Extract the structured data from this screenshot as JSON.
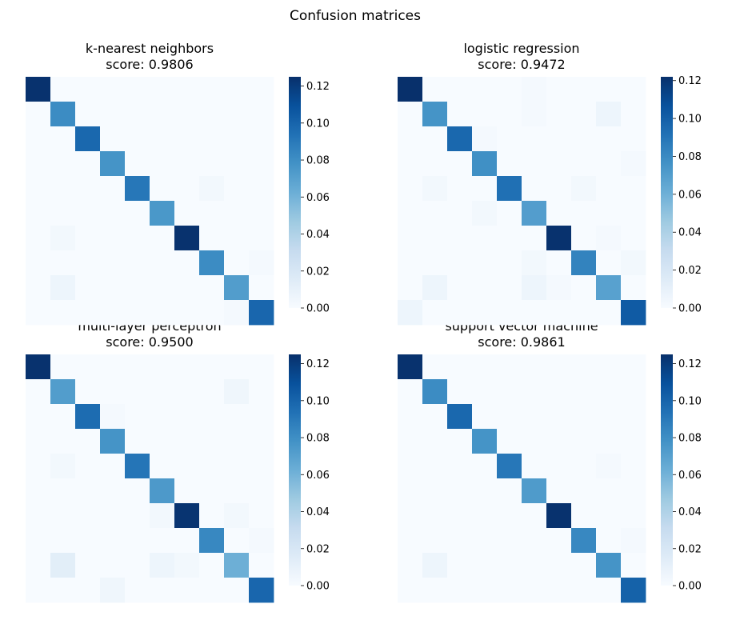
{
  "figure": {
    "title": "Confusion matrices"
  },
  "chart_data": [
    {
      "type": "heatmap",
      "title": "k-nearest neighbors",
      "subtitle": "score: 0.9806",
      "colormap": "Blues",
      "colorbar": {
        "vmin": 0.0,
        "vmax": 0.125,
        "ticks": [
          "0.00",
          "0.02",
          "0.04",
          "0.06",
          "0.08",
          "0.10",
          "0.12"
        ]
      },
      "diagonal": [
        0.124,
        0.081,
        0.098,
        0.077,
        0.091,
        0.075,
        0.124,
        0.081,
        0.072,
        0.099
      ],
      "off_diagonal": [
        [
          4,
          7,
          0.003
        ],
        [
          6,
          1,
          0.003
        ],
        [
          7,
          9,
          0.002
        ],
        [
          8,
          1,
          0.006
        ],
        [
          9,
          8,
          0.002
        ]
      ],
      "grid": false
    },
    {
      "type": "heatmap",
      "title": "logistic regression",
      "subtitle": "score: 0.9472",
      "colormap": "Blues",
      "colorbar": {
        "vmin": 0.0,
        "vmax": 0.122,
        "ticks": [
          "0.00",
          "0.02",
          "0.04",
          "0.06",
          "0.08",
          "0.10",
          "0.12"
        ]
      },
      "diagonal": [
        0.122,
        0.075,
        0.096,
        0.077,
        0.092,
        0.07,
        0.121,
        0.083,
        0.068,
        0.102
      ],
      "off_diagonal": [
        [
          0,
          5,
          0.002
        ],
        [
          1,
          5,
          0.002
        ],
        [
          1,
          8,
          0.006
        ],
        [
          2,
          3,
          0.002
        ],
        [
          3,
          9,
          0.002
        ],
        [
          4,
          1,
          0.003
        ],
        [
          4,
          7,
          0.003
        ],
        [
          5,
          3,
          0.003
        ],
        [
          6,
          8,
          0.002
        ],
        [
          7,
          5,
          0.003
        ],
        [
          7,
          9,
          0.003
        ],
        [
          8,
          1,
          0.006
        ],
        [
          8,
          5,
          0.006
        ],
        [
          8,
          6,
          0.002
        ],
        [
          9,
          0,
          0.006
        ]
      ],
      "grid": false
    },
    {
      "type": "heatmap",
      "title": "multi-layer perceptron",
      "subtitle": "score: 0.9500",
      "colormap": "Blues",
      "colorbar": {
        "vmin": 0.0,
        "vmax": 0.125,
        "ticks": [
          "0.00",
          "0.02",
          "0.04",
          "0.06",
          "0.08",
          "0.10",
          "0.12"
        ]
      },
      "diagonal": [
        0.124,
        0.072,
        0.096,
        0.077,
        0.092,
        0.074,
        0.123,
        0.083,
        0.062,
        0.099
      ],
      "off_diagonal": [
        [
          1,
          8,
          0.005
        ],
        [
          2,
          3,
          0.002
        ],
        [
          4,
          1,
          0.003
        ],
        [
          6,
          5,
          0.003
        ],
        [
          6,
          8,
          0.003
        ],
        [
          7,
          9,
          0.002
        ],
        [
          8,
          1,
          0.013
        ],
        [
          8,
          5,
          0.006
        ],
        [
          8,
          6,
          0.003
        ],
        [
          9,
          3,
          0.005
        ]
      ],
      "grid": false
    },
    {
      "type": "heatmap",
      "title": "support vector machine",
      "subtitle": "score: 0.9861",
      "colormap": "Blues",
      "colorbar": {
        "vmin": 0.0,
        "vmax": 0.125,
        "ticks": [
          "0.00",
          "0.02",
          "0.04",
          "0.06",
          "0.08",
          "0.10",
          "0.12"
        ]
      },
      "diagonal": [
        0.124,
        0.081,
        0.098,
        0.077,
        0.091,
        0.073,
        0.124,
        0.083,
        0.077,
        0.101
      ],
      "off_diagonal": [
        [
          4,
          8,
          0.002
        ],
        [
          7,
          9,
          0.002
        ],
        [
          8,
          1,
          0.006
        ]
      ],
      "grid": false
    }
  ]
}
